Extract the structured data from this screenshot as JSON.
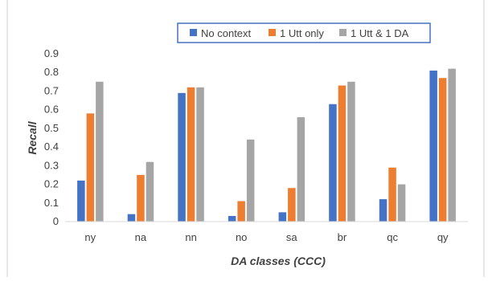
{
  "chart_data": {
    "type": "bar",
    "xlabel": "DA classes (CCC)",
    "ylabel": "Recall",
    "ylim": [
      0,
      0.9
    ],
    "yticks": [
      "0",
      "0.1",
      "0.2",
      "0.3",
      "0.4",
      "0.5",
      "0.6",
      "0.7",
      "0.8",
      "0.9"
    ],
    "categories": [
      "ny",
      "na",
      "nn",
      "no",
      "sa",
      "br",
      "qc",
      "qy"
    ],
    "series": [
      {
        "name": "No context",
        "color": "#4472C4",
        "values": [
          0.22,
          0.04,
          0.69,
          0.03,
          0.05,
          0.63,
          0.12,
          0.81
        ]
      },
      {
        "name": "1 Utt only",
        "color": "#ED7D31",
        "values": [
          0.58,
          0.25,
          0.72,
          0.11,
          0.18,
          0.73,
          0.29,
          0.77
        ]
      },
      {
        "name": "1 Utt & 1 DA",
        "color": "#A5A5A5",
        "values": [
          0.75,
          0.32,
          0.72,
          0.44,
          0.56,
          0.75,
          0.2,
          0.82
        ]
      }
    ],
    "legend_position": "top",
    "grid": false
  }
}
